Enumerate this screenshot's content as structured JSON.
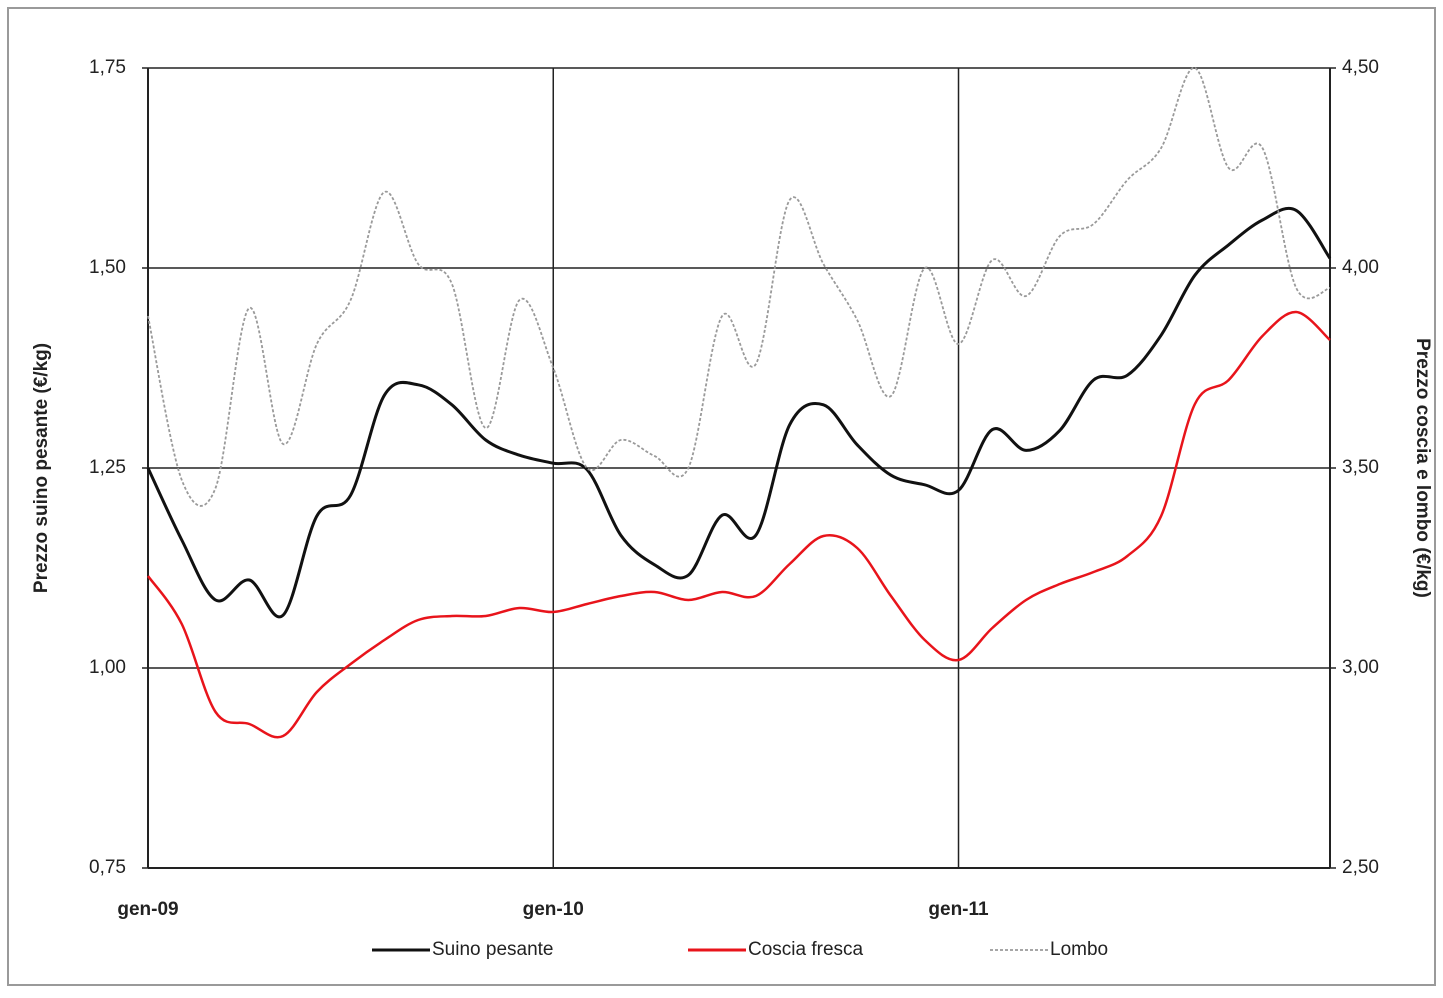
{
  "chart_data": {
    "type": "line",
    "categories": [
      "gen-09",
      null,
      null,
      null,
      null,
      null,
      null,
      null,
      null,
      null,
      null,
      null,
      "gen-10",
      null,
      null,
      null,
      null,
      null,
      null,
      null,
      null,
      null,
      null,
      null,
      "gen-11",
      null,
      null,
      null,
      null,
      null,
      null,
      null,
      null,
      null,
      null,
      null
    ],
    "ylabel": "Prezzo suino pesante (€/kg)",
    "y2label": "Prezzo coscia e lombo (€/kg)",
    "ylim": [
      0.75,
      1.75
    ],
    "yticks": [
      {
        "value": 0.75,
        "label": "0,75"
      },
      {
        "value": 1,
        "label": "1,00"
      },
      {
        "value": 1.25,
        "label": "1,25"
      },
      {
        "value": 1.5,
        "label": "1,50"
      },
      {
        "value": 1.75,
        "label": "1,75"
      }
    ],
    "y2lim": [
      2.5,
      4.5
    ],
    "y2ticks": [
      {
        "value": 2.5,
        "label": "2,50"
      },
      {
        "value": 3,
        "label": "3,00"
      },
      {
        "value": 3.5,
        "label": "3,50"
      },
      {
        "value": 4,
        "label": "4,00"
      },
      {
        "value": 4.5,
        "label": "4,50"
      }
    ],
    "grid": true,
    "legend": "bottom",
    "series": [
      {
        "name": "Suino pesante",
        "color": "#111111",
        "values": [
          1.25,
          1.16,
          1.085,
          1.11,
          1.066,
          1.19,
          1.216,
          1.341,
          1.354,
          1.329,
          1.285,
          1.266,
          1.256,
          1.248,
          1.166,
          1.129,
          1.116,
          1.191,
          1.166,
          1.304,
          1.329,
          1.279,
          1.241,
          1.229,
          1.222,
          1.298,
          1.272,
          1.297,
          1.36,
          1.366,
          1.416,
          1.491,
          1.529,
          1.56,
          1.572,
          1.512
        ]
      },
      {
        "name": "Coscia fresca",
        "color": "#e8141b",
        "axis": "y2",
        "values": [
          3.23,
          3.11,
          2.89,
          2.86,
          2.83,
          2.94,
          3.01,
          3.07,
          3.12,
          3.13,
          3.13,
          3.15,
          3.14,
          3.16,
          3.18,
          3.19,
          3.17,
          3.19,
          3.18,
          3.26,
          3.33,
          3.3,
          3.18,
          3.07,
          3.02,
          3.1,
          3.17,
          3.21,
          3.24,
          3.28,
          3.38,
          3.66,
          3.72,
          3.83,
          3.89,
          3.82
        ]
      },
      {
        "name": "Lombo",
        "color": "#9a9a9a",
        "axis": "y2",
        "dashed": true,
        "values": [
          3.88,
          3.47,
          3.45,
          3.9,
          3.56,
          3.81,
          3.92,
          4.19,
          4.01,
          3.96,
          3.6,
          3.92,
          3.75,
          3.5,
          3.57,
          3.53,
          3.5,
          3.88,
          3.76,
          4.17,
          4.01,
          3.87,
          3.68,
          4.0,
          3.81,
          4.02,
          3.93,
          4.08,
          4.11,
          4.22,
          4.3,
          4.5,
          4.25,
          4.3,
          3.95,
          3.95
        ]
      }
    ]
  }
}
